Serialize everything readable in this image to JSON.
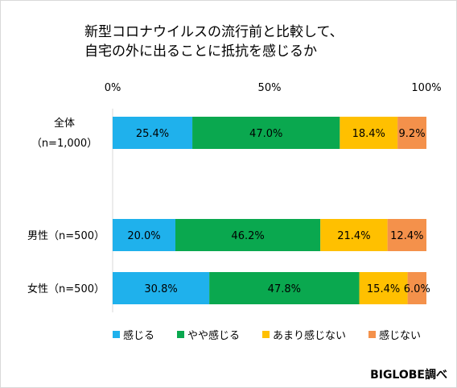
{
  "chart_data": {
    "type": "bar",
    "orientation": "horizontal",
    "stacked": true,
    "title": [
      "新型コロナウイルスの流行前と比較して、",
      "自宅の外に出ることに抵抗を感じるか"
    ],
    "categories": [
      {
        "line1": "全体",
        "line2": "（n=1,000）"
      },
      {
        "line1": "男性（n=500）",
        "line2": ""
      },
      {
        "line1": "女性（n=500）",
        "line2": ""
      }
    ],
    "xticks": [
      "0%",
      "50%",
      "100%"
    ],
    "xlim": [
      0,
      100
    ],
    "series": [
      {
        "name": "感じる",
        "color": "#1fb1ec",
        "values": [
          25.4,
          20.0,
          30.8
        ],
        "labels": [
          "25.4%",
          "20.0%",
          "30.8%"
        ]
      },
      {
        "name": "やや感じる",
        "color": "#0aa84f",
        "values": [
          47.0,
          46.2,
          47.8
        ],
        "labels": [
          "47.0%",
          "46.2%",
          "47.8%"
        ]
      },
      {
        "name": "あまり感じない",
        "color": "#ffc000",
        "values": [
          18.4,
          21.4,
          15.4
        ],
        "labels": [
          "18.4%",
          "21.4%",
          "15.4%"
        ]
      },
      {
        "name": "感じない",
        "color": "#f4914b",
        "values": [
          9.2,
          12.4,
          6.0
        ],
        "labels": [
          "9.2%",
          "12.4%",
          "6.0%"
        ]
      }
    ],
    "legend_position": "bottom",
    "grid": false
  },
  "source": "BIGLOBE調べ"
}
